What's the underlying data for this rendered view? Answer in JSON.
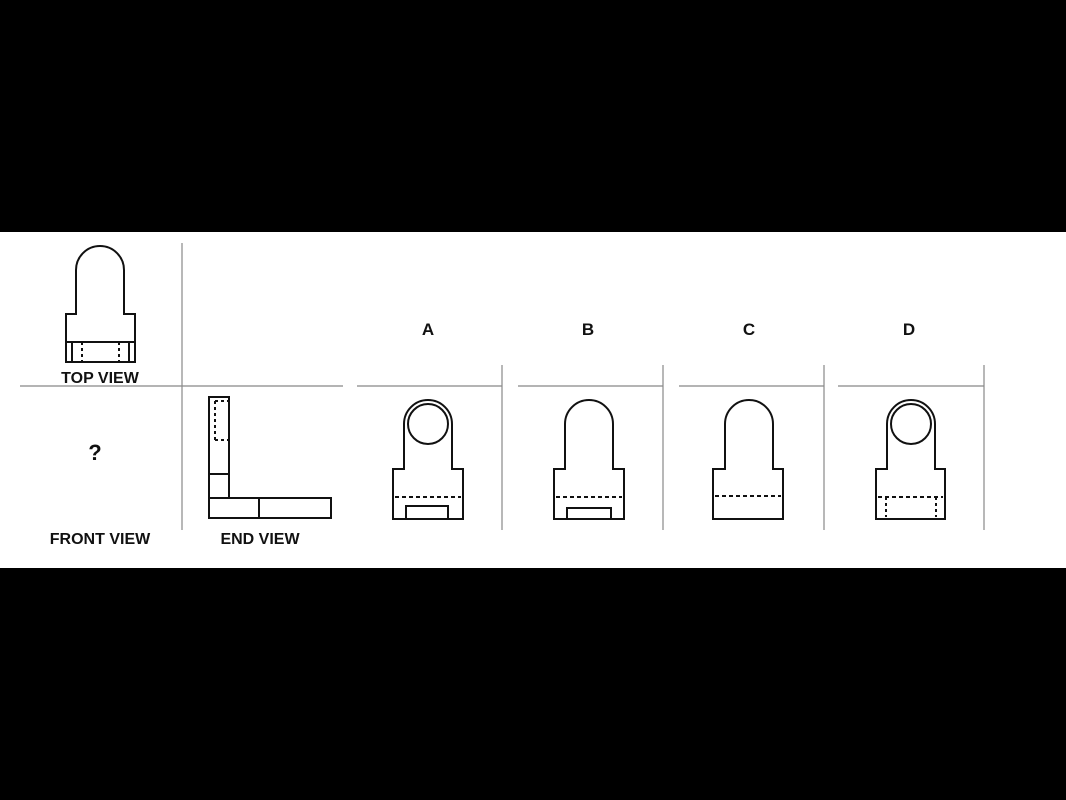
{
  "labels": {
    "top_view": "TOP VIEW",
    "front_view": "FRONT VIEW",
    "end_view": "END VIEW",
    "question": "?"
  },
  "options": [
    {
      "letter": "A",
      "shape": "circle-top-with-inner-slot"
    },
    {
      "letter": "B",
      "shape": "arch-top-with-inner-slot"
    },
    {
      "letter": "C",
      "shape": "arch-top-with-hidden-line"
    },
    {
      "letter": "D",
      "shape": "circle-top-with-hidden-slot"
    }
  ],
  "colors": {
    "background": "#000000",
    "panel": "#ffffff",
    "line": "#111111",
    "divider": "#888888"
  }
}
